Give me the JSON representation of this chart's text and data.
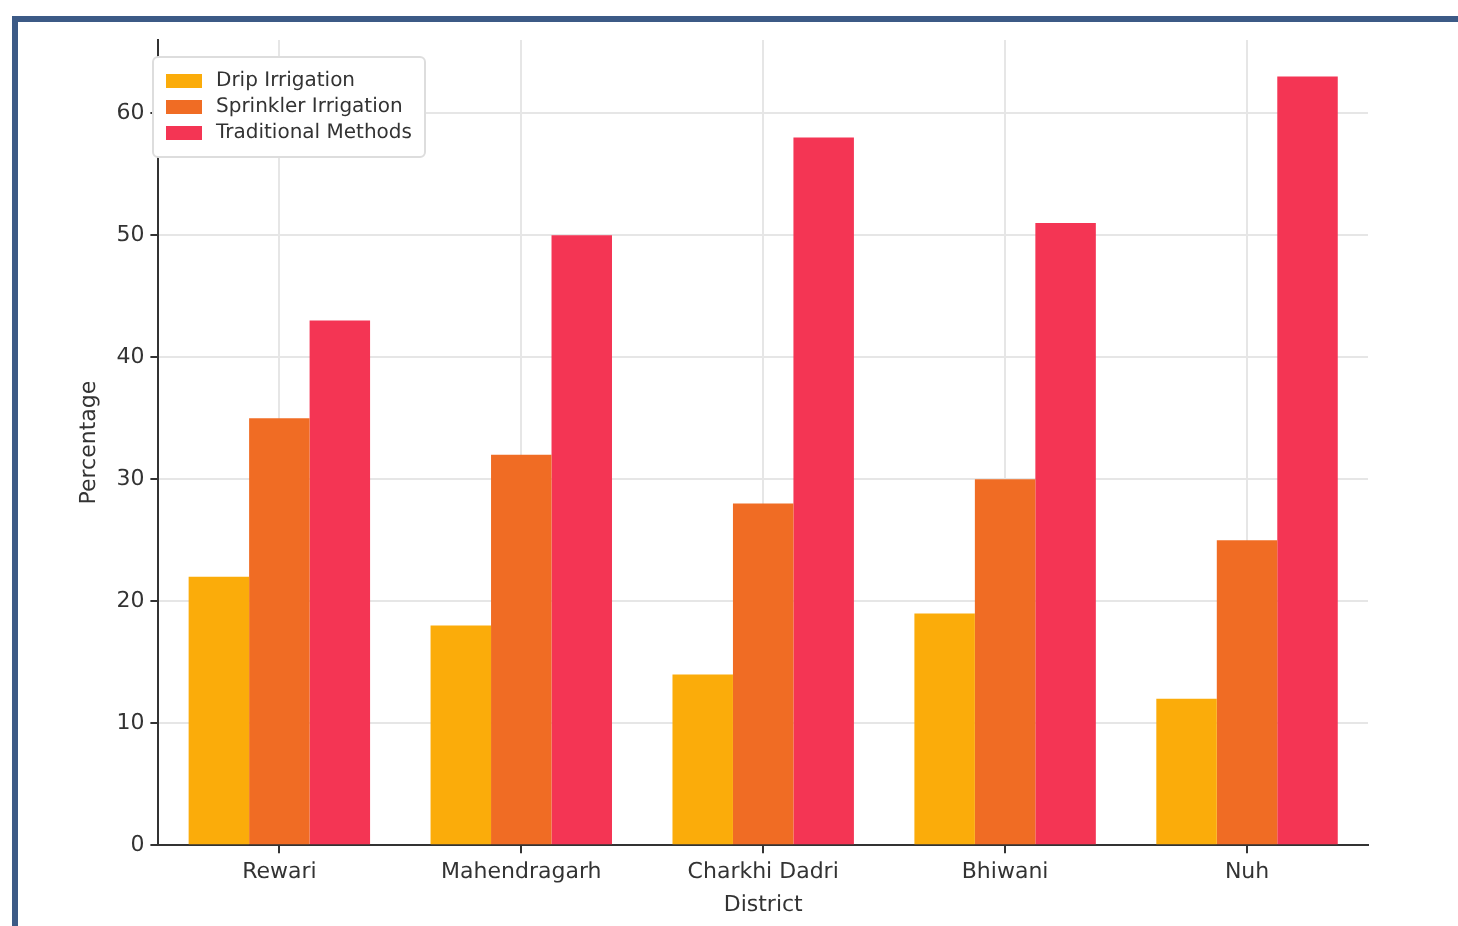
{
  "chart_data": {
    "type": "bar",
    "xlabel": "District",
    "ylabel": "Percentage",
    "categories": [
      "Rewari",
      "Mahendragarh",
      "Charkhi Dadri",
      "Bhiwani",
      "Nuh"
    ],
    "series": [
      {
        "name": "Drip Irrigation",
        "color": "#fbac0a",
        "values": [
          22,
          18,
          14,
          19,
          12
        ]
      },
      {
        "name": "Sprinkler Irrigation",
        "color": "#f06c24",
        "values": [
          35,
          32,
          28,
          30,
          25
        ]
      },
      {
        "name": "Traditional Methods",
        "color": "#f43554",
        "values": [
          43,
          50,
          58,
          51,
          63
        ]
      }
    ],
    "ylim": [
      0,
      66
    ],
    "yticks": [
      0,
      10,
      20,
      30,
      40,
      50,
      60
    ],
    "grid": true,
    "legend": "top left"
  }
}
